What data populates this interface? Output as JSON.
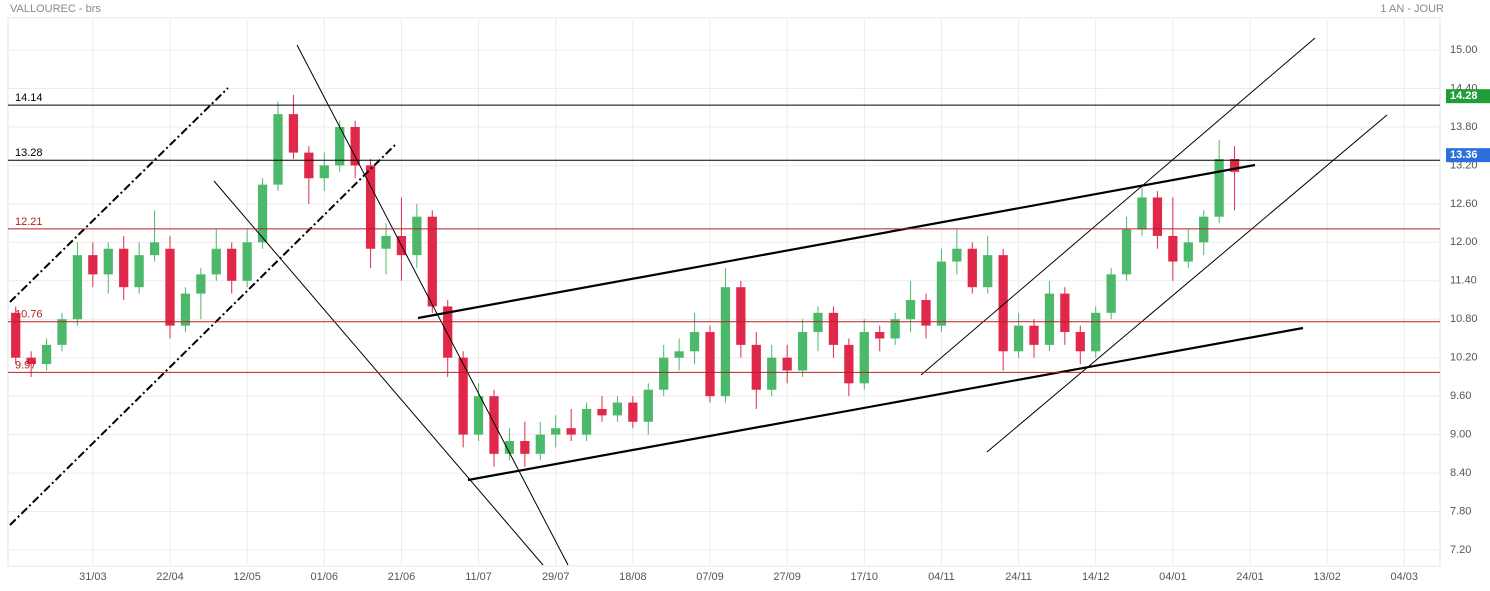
{
  "chart_data": {
    "type": "candlestick",
    "title": "VALLOUREC - brs",
    "period": "1 AN - JOUR",
    "categories": [
      null,
      null,
      null,
      null,
      null,
      "31/03",
      null,
      null,
      null,
      null,
      "22/04",
      null,
      null,
      null,
      null,
      "12/05",
      null,
      null,
      null,
      null,
      "01/06",
      null,
      null,
      null,
      null,
      "21/06",
      null,
      null,
      null,
      null,
      "11/07",
      null,
      null,
      null,
      null,
      "29/07",
      null,
      null,
      null,
      null,
      "18/08",
      null,
      null,
      null,
      null,
      "07/09",
      null,
      null,
      null,
      null,
      "27/09",
      null,
      null,
      null,
      null,
      "17/10",
      null,
      null,
      null,
      null,
      "04/11",
      null,
      null,
      null,
      null,
      "24/11",
      null,
      null,
      null,
      null,
      "14/12",
      null,
      null,
      null,
      null,
      "04/01",
      null,
      null,
      null,
      null,
      "24/01",
      null,
      null,
      null,
      null,
      "13/02",
      null,
      null,
      null,
      null,
      "04/03"
    ],
    "open": [
      10.9,
      10.2,
      10.1,
      10.4,
      10.8,
      11.8,
      11.5,
      11.9,
      11.3,
      11.8,
      11.9,
      10.7,
      11.2,
      11.5,
      11.9,
      11.4,
      12.0,
      12.9,
      14.0,
      13.4,
      13.0,
      13.2,
      13.8,
      13.2,
      11.9,
      12.1,
      11.8,
      12.4,
      11.0,
      10.2,
      9.0,
      9.6,
      8.7,
      8.9,
      8.7,
      9.0,
      9.1,
      9.0,
      9.4,
      9.3,
      9.5,
      9.2,
      9.7,
      10.2,
      10.3,
      10.6,
      9.6,
      11.3,
      10.4,
      9.7,
      10.2,
      10.0,
      10.6,
      10.9,
      10.4,
      9.8,
      10.6,
      10.5,
      10.8,
      11.1,
      10.7,
      11.7,
      11.9,
      11.3,
      11.8,
      10.3,
      10.7,
      10.4,
      11.2,
      10.6,
      10.3,
      10.9,
      11.5,
      12.2,
      12.7,
      12.1,
      11.7,
      12.0,
      12.4,
      13.3,
      null,
      null,
      null,
      null,
      null,
      null,
      null,
      null,
      null,
      null,
      null
    ],
    "high": [
      11.0,
      10.3,
      10.5,
      10.9,
      12.0,
      12.0,
      12.0,
      12.1,
      12.0,
      12.5,
      12.1,
      11.3,
      11.6,
      12.2,
      12.0,
      12.2,
      13.0,
      14.2,
      14.3,
      13.5,
      13.4,
      13.9,
      13.9,
      13.3,
      12.3,
      12.7,
      12.6,
      12.5,
      11.1,
      10.3,
      9.8,
      9.7,
      9.1,
      9.2,
      9.2,
      9.3,
      9.4,
      9.5,
      9.6,
      9.6,
      9.6,
      9.8,
      10.4,
      10.5,
      10.9,
      10.7,
      11.6,
      11.4,
      10.6,
      10.4,
      10.4,
      10.8,
      11.0,
      11.0,
      10.5,
      10.8,
      10.7,
      10.9,
      11.4,
      11.2,
      11.9,
      12.2,
      12.0,
      12.1,
      11.9,
      10.9,
      10.8,
      11.4,
      11.3,
      10.7,
      11.0,
      11.6,
      12.4,
      12.9,
      12.8,
      12.7,
      12.2,
      12.5,
      13.6,
      13.5,
      null,
      null,
      null,
      null,
      null,
      null,
      null,
      null,
      null,
      null,
      null
    ],
    "low": [
      10.1,
      9.9,
      10.0,
      10.3,
      10.7,
      11.3,
      11.2,
      11.1,
      11.2,
      11.7,
      10.5,
      10.6,
      10.8,
      11.4,
      11.2,
      11.3,
      11.9,
      12.8,
      13.3,
      12.6,
      12.8,
      13.1,
      13.0,
      11.6,
      11.5,
      11.4,
      11.6,
      10.9,
      9.9,
      8.8,
      8.9,
      8.5,
      8.6,
      8.5,
      8.6,
      8.8,
      8.9,
      8.9,
      9.2,
      9.2,
      9.1,
      9.0,
      9.6,
      10.0,
      10.1,
      9.5,
      9.5,
      10.2,
      9.4,
      9.6,
      9.8,
      9.9,
      10.3,
      10.2,
      9.6,
      9.7,
      10.3,
      10.4,
      10.6,
      10.5,
      10.6,
      11.5,
      11.2,
      11.2,
      10.0,
      10.2,
      10.2,
      10.3,
      10.4,
      10.1,
      10.2,
      10.8,
      11.4,
      12.1,
      11.9,
      11.4,
      11.6,
      11.8,
      12.3,
      12.5,
      null,
      null,
      null,
      null,
      null,
      null,
      null,
      null,
      null,
      null,
      null
    ],
    "close": [
      10.2,
      10.1,
      10.4,
      10.8,
      11.8,
      11.5,
      11.9,
      11.3,
      11.8,
      12.0,
      10.7,
      11.2,
      11.5,
      11.9,
      11.4,
      12.0,
      12.9,
      14.0,
      13.4,
      13.0,
      13.2,
      13.8,
      13.2,
      11.9,
      12.1,
      11.8,
      12.4,
      11.0,
      10.2,
      9.0,
      9.6,
      8.7,
      8.9,
      8.7,
      9.0,
      9.1,
      9.0,
      9.4,
      9.3,
      9.5,
      9.2,
      9.7,
      10.2,
      10.3,
      10.6,
      9.6,
      11.3,
      10.4,
      9.7,
      10.2,
      10.0,
      10.6,
      10.9,
      10.4,
      9.8,
      10.6,
      10.5,
      10.8,
      11.1,
      10.7,
      11.7,
      11.9,
      11.3,
      11.8,
      10.3,
      10.7,
      10.4,
      11.2,
      10.6,
      10.3,
      10.9,
      11.5,
      12.2,
      12.7,
      12.1,
      11.7,
      12.0,
      12.4,
      13.3,
      13.1,
      null,
      null,
      null,
      null,
      null,
      null,
      null,
      null,
      null,
      null,
      null
    ],
    "up_color": "#4cb96a",
    "down_color": "#e0294a",
    "ylim": [
      6.95,
      15.5
    ],
    "yticks": [
      {
        "value": 7.2,
        "label": "7.20"
      },
      {
        "value": 7.8,
        "label": "7.80"
      },
      {
        "value": 8.4,
        "label": "8.40"
      },
      {
        "value": 9.0,
        "label": "9.00"
      },
      {
        "value": 9.6,
        "label": "9.60"
      },
      {
        "value": 10.2,
        "label": "10.20"
      },
      {
        "value": 10.8,
        "label": "10.80"
      },
      {
        "value": 11.4,
        "label": "11.40"
      },
      {
        "value": 12.0,
        "label": "12.00"
      },
      {
        "value": 12.6,
        "label": "12.60"
      },
      {
        "value": 13.2,
        "label": "13.20"
      },
      {
        "value": 13.8,
        "label": "13.80"
      },
      {
        "value": 14.4,
        "label": "14.40"
      },
      {
        "value": 15.0,
        "label": "15.00"
      }
    ],
    "grid": true,
    "levels": [
      {
        "value": 14.14,
        "color": "#000000"
      },
      {
        "value": 13.28,
        "color": "#000000"
      },
      {
        "value": 12.21,
        "color": "#b22222"
      },
      {
        "value": 10.76,
        "color": "#b22222"
      },
      {
        "value": 9.97,
        "color": "#b22222"
      }
    ],
    "price_tags": [
      {
        "value": 14.28,
        "color": "#1f9d3a"
      },
      {
        "value": 13.36,
        "color": "#2a6fdb"
      }
    ]
  }
}
